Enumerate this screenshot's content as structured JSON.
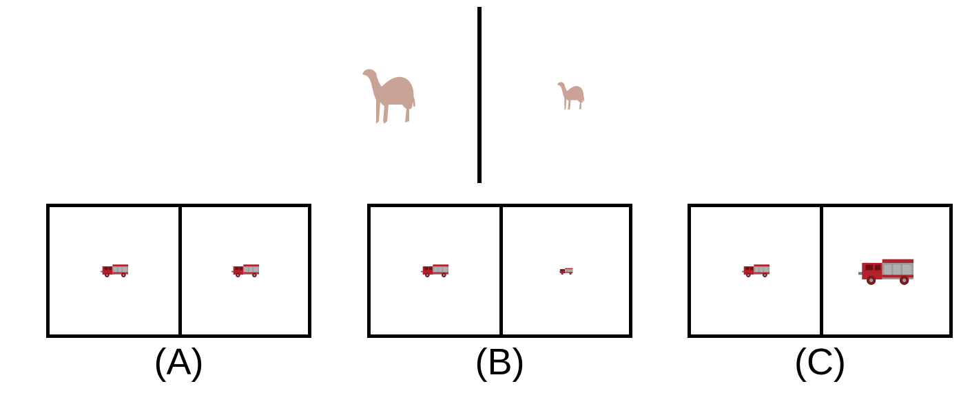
{
  "reference": {
    "left_object": "camel",
    "right_object": "camel"
  },
  "options": [
    {
      "label": "(A)",
      "left_object": "fire-truck",
      "right_object": "fire-truck"
    },
    {
      "label": "(B)",
      "left_object": "fire-truck",
      "right_object": "fire-truck"
    },
    {
      "label": "(C)",
      "left_object": "fire-truck",
      "right_object": "fire-truck"
    }
  ],
  "colors": {
    "camel": "#c9a396",
    "truck_red": "#b5212b",
    "truck_gray": "#9a9a9a",
    "ink": "#000000"
  }
}
